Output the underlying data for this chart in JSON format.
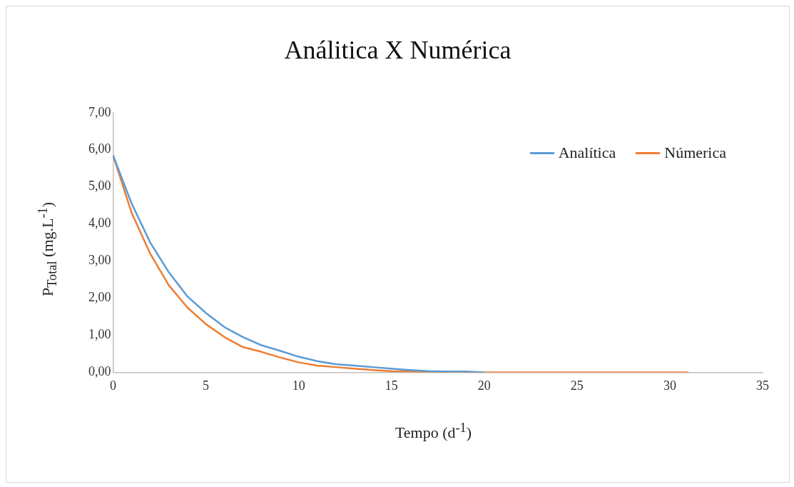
{
  "chart_data": {
    "type": "line",
    "title": "Análitica X Numérica",
    "xlabel": "Tempo (d$^{-1}$)",
    "ylabel": "P$_{Total}$ (mg.L$^{-1}$)",
    "xlim": [
      0,
      35
    ],
    "xticks": [
      0,
      5,
      10,
      15,
      20,
      25,
      30,
      35
    ],
    "ylim": [
      0,
      7
    ],
    "yticks": [
      {
        "value": 0,
        "label": "0,00"
      },
      {
        "value": 1,
        "label": "1,00"
      },
      {
        "value": 2,
        "label": "2,00"
      },
      {
        "value": 3,
        "label": "3,00"
      },
      {
        "value": 4,
        "label": "4,00"
      },
      {
        "value": 5,
        "label": "5,00"
      },
      {
        "value": 6,
        "label": "6,00"
      },
      {
        "value": 7,
        "label": "7,00"
      }
    ],
    "grid": false,
    "legend": "top right",
    "marker": "none",
    "line_style": "solid",
    "series": [
      {
        "name": "Analítica",
        "color": "#5b9bd5",
        "x": [
          0,
          1,
          2,
          3,
          4,
          5,
          6,
          7,
          8,
          9,
          10,
          11,
          12,
          13,
          14,
          15,
          16,
          17,
          18,
          19,
          20
        ],
        "values": [
          5.85,
          4.55,
          3.5,
          2.7,
          2.05,
          1.6,
          1.22,
          0.95,
          0.73,
          0.58,
          0.42,
          0.3,
          0.22,
          0.18,
          0.14,
          0.1,
          0.06,
          0.03,
          0.02,
          0.02,
          0
        ]
      },
      {
        "name": "Númerica",
        "color": "#ed7d31",
        "x": [
          0,
          1,
          2,
          3,
          4,
          5,
          6,
          7,
          8,
          9,
          10,
          11,
          12,
          13,
          14,
          15,
          16,
          17,
          18,
          19,
          20,
          21,
          22,
          23,
          24,
          25,
          26,
          27,
          28,
          29,
          30,
          31
        ],
        "values": [
          5.85,
          4.3,
          3.2,
          2.35,
          1.75,
          1.3,
          0.95,
          0.68,
          0.55,
          0.4,
          0.27,
          0.18,
          0.14,
          0.1,
          0.06,
          0.03,
          0.02,
          0.01,
          0,
          0,
          0,
          0,
          0,
          0,
          0,
          0,
          0,
          0,
          0,
          0,
          0,
          0
        ]
      }
    ]
  }
}
